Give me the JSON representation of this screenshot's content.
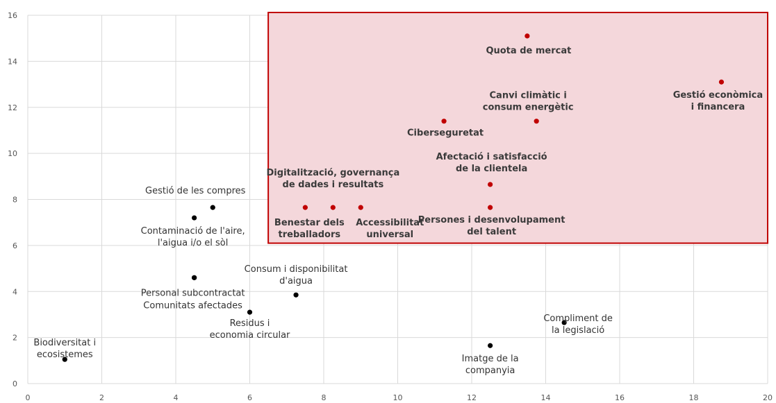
{
  "chart_data": {
    "type": "scatter",
    "title": "",
    "xlabel": "",
    "ylabel": "",
    "xlim": [
      0,
      20
    ],
    "ylim": [
      0,
      16
    ],
    "x_ticks": [
      "0",
      "2",
      "4",
      "6",
      "8",
      "10",
      "12",
      "14",
      "16",
      "18",
      "20"
    ],
    "y_ticks": [
      "0",
      "2",
      "4",
      "6",
      "8",
      "10",
      "12",
      "14",
      "16"
    ],
    "grid": true,
    "colors": {
      "black_point": "#000000",
      "red_point": "#c00000",
      "highlight_fill": "#f4d7db",
      "highlight_border": "#c00000",
      "grid": "#d9d9d9"
    },
    "highlight_region": {
      "x": [
        6.5,
        20
      ],
      "y": [
        6.1,
        16
      ]
    },
    "points": [
      {
        "x": 1.0,
        "y": 1.05,
        "color": "black",
        "label": [
          "Biodiversitat i",
          "ecosistemes"
        ]
      },
      {
        "x": 4.5,
        "y": 7.2,
        "color": "black",
        "label": [
          "Contaminació de l'aire,",
          "l'aigua i/o el sòl"
        ]
      },
      {
        "x": 5.0,
        "y": 7.65,
        "color": "black",
        "label": [
          "Gestió de les compres"
        ]
      },
      {
        "x": 4.5,
        "y": 4.6,
        "color": "black",
        "label": [
          "Personal subcontractat"
        ]
      },
      {
        "x": 4.5,
        "y": 4.6,
        "color": "black",
        "label": [
          "Comunitats afectades"
        ]
      },
      {
        "x": 6.0,
        "y": 3.1,
        "color": "black",
        "label": [
          "Residus i",
          "economia circular"
        ]
      },
      {
        "x": 7.25,
        "y": 3.85,
        "color": "black",
        "label": [
          "Consum i disponibilitat",
          "d'aigua"
        ]
      },
      {
        "x": 12.5,
        "y": 1.65,
        "color": "black",
        "label": [
          "Imatge de la",
          "companyia"
        ]
      },
      {
        "x": 14.5,
        "y": 2.65,
        "color": "black",
        "label": [
          "Compliment de",
          "la legislació"
        ]
      },
      {
        "x": 7.5,
        "y": 7.65,
        "color": "red",
        "label": [
          "Digitalització, governança",
          "de dades i resultats"
        ]
      },
      {
        "x": 8.25,
        "y": 7.65,
        "color": "red",
        "label": [
          "Benestar dels",
          "treballadors"
        ]
      },
      {
        "x": 9.0,
        "y": 7.65,
        "color": "red",
        "label": [
          "Accessibilitat",
          "universal"
        ]
      },
      {
        "x": 11.25,
        "y": 11.4,
        "color": "red",
        "label": [
          "Ciberseguretat"
        ]
      },
      {
        "x": 12.5,
        "y": 8.65,
        "color": "red",
        "label": [
          "Afectació i satisfacció",
          "de la clientela"
        ]
      },
      {
        "x": 12.5,
        "y": 7.65,
        "color": "red",
        "label": [
          "Persones i desenvolupament",
          "del talent"
        ]
      },
      {
        "x": 13.5,
        "y": 15.1,
        "color": "red",
        "label": [
          "Quota de mercat"
        ]
      },
      {
        "x": 13.75,
        "y": 11.4,
        "color": "red",
        "label": [
          "Canvi climàtic i",
          "consum energètic"
        ]
      },
      {
        "x": 18.75,
        "y": 13.1,
        "color": "red",
        "label": [
          "Gestió econòmica",
          "i financera"
        ]
      }
    ]
  }
}
